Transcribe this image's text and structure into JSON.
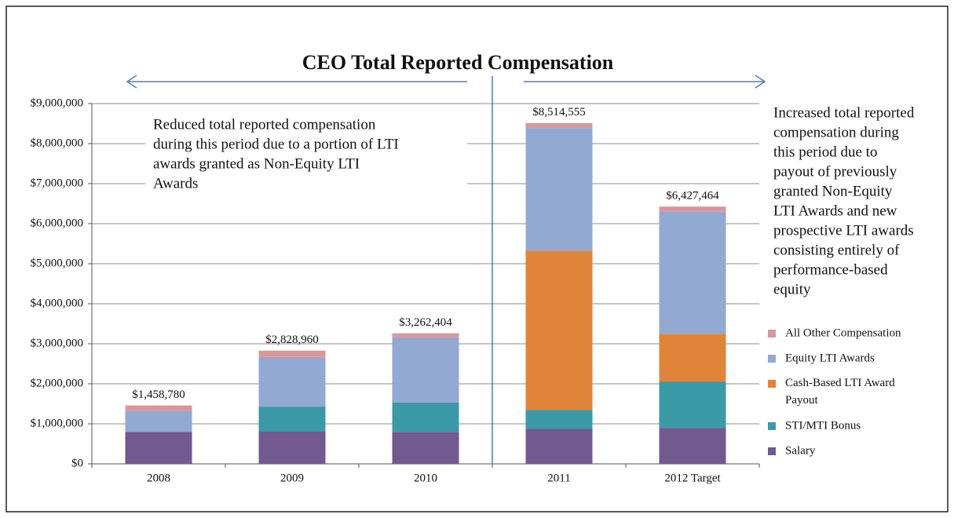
{
  "chart_data": {
    "type": "stacked_bar",
    "title": "CEO Total  Reported Compensation",
    "categories": [
      "2008",
      "2009",
      "2010",
      "2011",
      "2012 Target"
    ],
    "series": [
      {
        "name": "Salary",
        "color": "#725990",
        "values": [
          800000,
          820000,
          800000,
          880000,
          900000
        ]
      },
      {
        "name": "STI/MTI Bonus",
        "color": "#3b9aa8",
        "values": [
          0,
          610000,
          730000,
          470000,
          1160000
        ]
      },
      {
        "name": "Cash-Based LTI Award Payout",
        "color": "#e0843a",
        "values": [
          0,
          0,
          0,
          3980000,
          1190000
        ]
      },
      {
        "name": "Equity LTI Awards",
        "color": "#92a9d2",
        "values": [
          530000,
          1240000,
          1630000,
          3060000,
          3060000
        ]
      },
      {
        "name": "All Other Compensation",
        "color": "#d9979a",
        "values": [
          128780,
          158960,
          102404,
          124555,
          117464
        ]
      }
    ],
    "totals": {
      "values": [
        1458780,
        2828960,
        3262404,
        8514555,
        6427464
      ],
      "value_labels": [
        "$1,458,780",
        "$2,828,960",
        "$3,262,404",
        "$8,514,555",
        "$6,427,464"
      ]
    },
    "ylim": [
      0,
      9000000
    ],
    "yticks": [
      {
        "value": 0,
        "label": "$0"
      },
      {
        "value": 1000000,
        "label": "$1,000,000"
      },
      {
        "value": 2000000,
        "label": "$2,000,000"
      },
      {
        "value": 3000000,
        "label": "$3,000,000"
      },
      {
        "value": 4000000,
        "label": "$4,000,000"
      },
      {
        "value": 5000000,
        "label": "$5,000,000"
      },
      {
        "value": 6000000,
        "label": "$6,000,000"
      },
      {
        "value": 7000000,
        "label": "$7,000,000"
      },
      {
        "value": 8000000,
        "label": "$8,000,000"
      },
      {
        "value": 9000000,
        "label": "$9,000,000"
      }
    ],
    "grid": true,
    "legend": "right",
    "annotations": [
      {
        "lines": [
          "Reduced total reported compensation",
          "during this period due to a portion of LTI",
          "awards granted as Non-Equity LTI",
          "Awards"
        ]
      },
      {
        "lines": [
          "Increased total reported",
          "compensation during",
          "this period due to",
          "payout of previously",
          "granted Non-Equity",
          "LTI Awards and new",
          "prospective LTI awards",
          "consisting entirely of",
          "performance-based",
          "equity"
        ]
      }
    ]
  }
}
